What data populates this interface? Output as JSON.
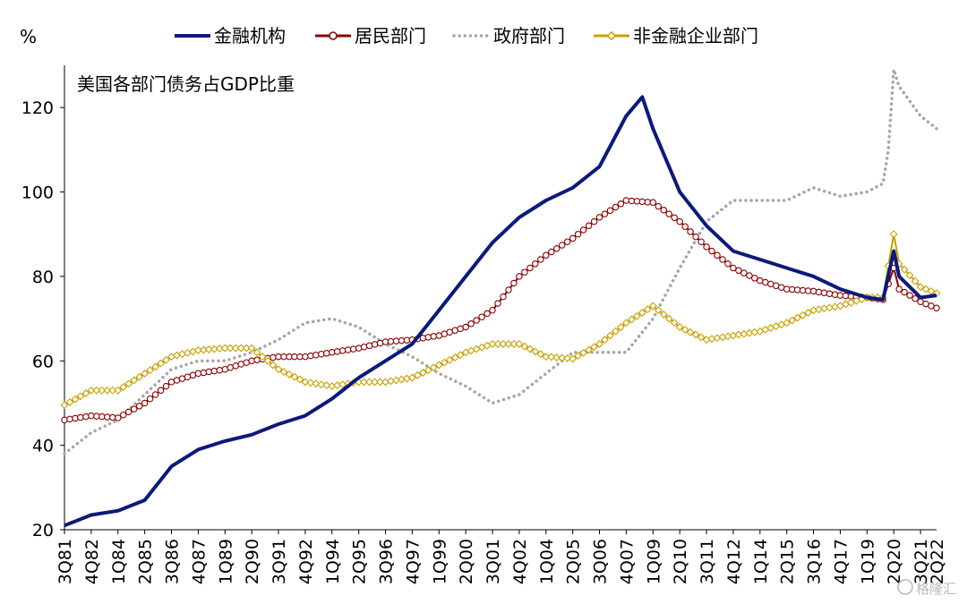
{
  "chart_data": {
    "type": "line",
    "title": "美国各部门债务占GDP比重",
    "y_unit": "%",
    "ylim": [
      20,
      130
    ],
    "y_ticks": [
      20,
      40,
      60,
      80,
      100,
      120
    ],
    "x_range": [
      "3Q81",
      "2Q22"
    ],
    "x_tick_labels": [
      "3Q81",
      "4Q82",
      "1Q84",
      "2Q85",
      "3Q86",
      "4Q87",
      "1Q89",
      "2Q90",
      "3Q91",
      "4Q92",
      "1Q94",
      "2Q95",
      "3Q96",
      "4Q97",
      "1Q99",
      "2Q00",
      "3Q01",
      "4Q02",
      "1Q04",
      "2Q05",
      "3Q06",
      "4Q07",
      "1Q09",
      "2Q10",
      "3Q11",
      "4Q12",
      "1Q14",
      "2Q15",
      "3Q16",
      "4Q17",
      "1Q19",
      "2Q20",
      "3Q21",
      "2Q22"
    ],
    "legend_position": "top",
    "series": [
      {
        "name": "金融机构",
        "color": "#0b1a7a",
        "style": "solid-thick",
        "points": [
          [
            "3Q81",
            21
          ],
          [
            "4Q82",
            23.5
          ],
          [
            "1Q84",
            24.5
          ],
          [
            "2Q85",
            27
          ],
          [
            "3Q86",
            35
          ],
          [
            "4Q87",
            39
          ],
          [
            "1Q89",
            41
          ],
          [
            "2Q90",
            42.5
          ],
          [
            "3Q91",
            45
          ],
          [
            "4Q92",
            47
          ],
          [
            "1Q94",
            51
          ],
          [
            "2Q95",
            56
          ],
          [
            "3Q96",
            60
          ],
          [
            "4Q97",
            64
          ],
          [
            "1Q99",
            72
          ],
          [
            "2Q00",
            80
          ],
          [
            "3Q01",
            88
          ],
          [
            "4Q02",
            94
          ],
          [
            "1Q04",
            98
          ],
          [
            "2Q05",
            101
          ],
          [
            "3Q06",
            106
          ],
          [
            "4Q07",
            118
          ],
          [
            "3Q08",
            122.5
          ],
          [
            "1Q09",
            115
          ],
          [
            "2Q10",
            100
          ],
          [
            "3Q11",
            92
          ],
          [
            "4Q12",
            86
          ],
          [
            "1Q14",
            84
          ],
          [
            "2Q15",
            82
          ],
          [
            "3Q16",
            80
          ],
          [
            "4Q17",
            77
          ],
          [
            "1Q19",
            75
          ],
          [
            "4Q19",
            74.5
          ],
          [
            "2Q20",
            86
          ],
          [
            "3Q20",
            80
          ],
          [
            "3Q21",
            75
          ],
          [
            "2Q22",
            75.5
          ]
        ]
      },
      {
        "name": "居民部门",
        "color": "#8b0000",
        "style": "marker-circle",
        "points": [
          [
            "3Q81",
            46
          ],
          [
            "4Q82",
            47
          ],
          [
            "1Q84",
            46.5
          ],
          [
            "2Q85",
            50
          ],
          [
            "3Q86",
            55
          ],
          [
            "4Q87",
            57
          ],
          [
            "1Q89",
            58
          ],
          [
            "2Q90",
            60
          ],
          [
            "3Q91",
            61
          ],
          [
            "4Q92",
            61
          ],
          [
            "1Q94",
            62
          ],
          [
            "2Q95",
            63
          ],
          [
            "3Q96",
            64.5
          ],
          [
            "4Q97",
            65
          ],
          [
            "1Q99",
            66
          ],
          [
            "2Q00",
            68
          ],
          [
            "3Q01",
            72
          ],
          [
            "4Q02",
            80
          ],
          [
            "1Q04",
            85
          ],
          [
            "2Q05",
            89
          ],
          [
            "3Q06",
            94
          ],
          [
            "4Q07",
            98
          ],
          [
            "1Q09",
            97.5
          ],
          [
            "2Q10",
            93
          ],
          [
            "3Q11",
            87
          ],
          [
            "4Q12",
            82
          ],
          [
            "1Q14",
            79
          ],
          [
            "2Q15",
            77
          ],
          [
            "3Q16",
            76.5
          ],
          [
            "4Q17",
            75.5
          ],
          [
            "1Q19",
            75
          ],
          [
            "4Q19",
            74.5
          ],
          [
            "2Q20",
            82
          ],
          [
            "3Q20",
            77
          ],
          [
            "3Q21",
            74
          ],
          [
            "2Q22",
            72.5
          ]
        ]
      },
      {
        "name": "政府部门",
        "color": "#a6a6a6",
        "style": "dotted",
        "points": [
          [
            "3Q81",
            38
          ],
          [
            "4Q82",
            43
          ],
          [
            "1Q84",
            46
          ],
          [
            "2Q85",
            52
          ],
          [
            "3Q86",
            58
          ],
          [
            "4Q87",
            60
          ],
          [
            "1Q89",
            60
          ],
          [
            "2Q90",
            62
          ],
          [
            "3Q91",
            65
          ],
          [
            "4Q92",
            69
          ],
          [
            "1Q94",
            70
          ],
          [
            "2Q95",
            68
          ],
          [
            "3Q96",
            64
          ],
          [
            "4Q97",
            61
          ],
          [
            "1Q99",
            57
          ],
          [
            "2Q00",
            54
          ],
          [
            "3Q01",
            50
          ],
          [
            "4Q02",
            52
          ],
          [
            "1Q04",
            57
          ],
          [
            "2Q05",
            62
          ],
          [
            "3Q06",
            62
          ],
          [
            "4Q07",
            62
          ],
          [
            "1Q09",
            70
          ],
          [
            "2Q10",
            82
          ],
          [
            "3Q11",
            93
          ],
          [
            "4Q12",
            98
          ],
          [
            "1Q14",
            98
          ],
          [
            "2Q15",
            98
          ],
          [
            "3Q16",
            101
          ],
          [
            "4Q17",
            99
          ],
          [
            "1Q19",
            100
          ],
          [
            "4Q19",
            102
          ],
          [
            "1Q20",
            110
          ],
          [
            "2Q20",
            129
          ],
          [
            "3Q20",
            125
          ],
          [
            "3Q21",
            118
          ],
          [
            "2Q22",
            115
          ]
        ]
      },
      {
        "name": "非金融企业部门",
        "color": "#c8a000",
        "style": "marker-diamond",
        "points": [
          [
            "3Q81",
            49.5
          ],
          [
            "4Q82",
            53
          ],
          [
            "1Q84",
            53
          ],
          [
            "2Q85",
            57
          ],
          [
            "3Q86",
            61
          ],
          [
            "4Q87",
            62.5
          ],
          [
            "1Q89",
            63
          ],
          [
            "2Q90",
            63
          ],
          [
            "3Q91",
            58
          ],
          [
            "4Q92",
            55
          ],
          [
            "1Q94",
            54
          ],
          [
            "2Q95",
            55
          ],
          [
            "3Q96",
            55
          ],
          [
            "4Q97",
            56
          ],
          [
            "1Q99",
            59
          ],
          [
            "2Q00",
            62
          ],
          [
            "3Q01",
            64
          ],
          [
            "4Q02",
            64
          ],
          [
            "1Q04",
            61
          ],
          [
            "2Q05",
            60.5
          ],
          [
            "3Q06",
            64
          ],
          [
            "4Q07",
            69
          ],
          [
            "1Q09",
            73
          ],
          [
            "2Q10",
            68
          ],
          [
            "3Q11",
            65
          ],
          [
            "4Q12",
            66
          ],
          [
            "1Q14",
            67
          ],
          [
            "2Q15",
            69
          ],
          [
            "3Q16",
            72
          ],
          [
            "4Q17",
            73
          ],
          [
            "1Q19",
            75
          ],
          [
            "4Q19",
            75
          ],
          [
            "2Q20",
            90
          ],
          [
            "3Q20",
            83
          ],
          [
            "3Q21",
            77.5
          ],
          [
            "2Q22",
            76
          ]
        ]
      }
    ]
  },
  "watermark": "格隆汇"
}
